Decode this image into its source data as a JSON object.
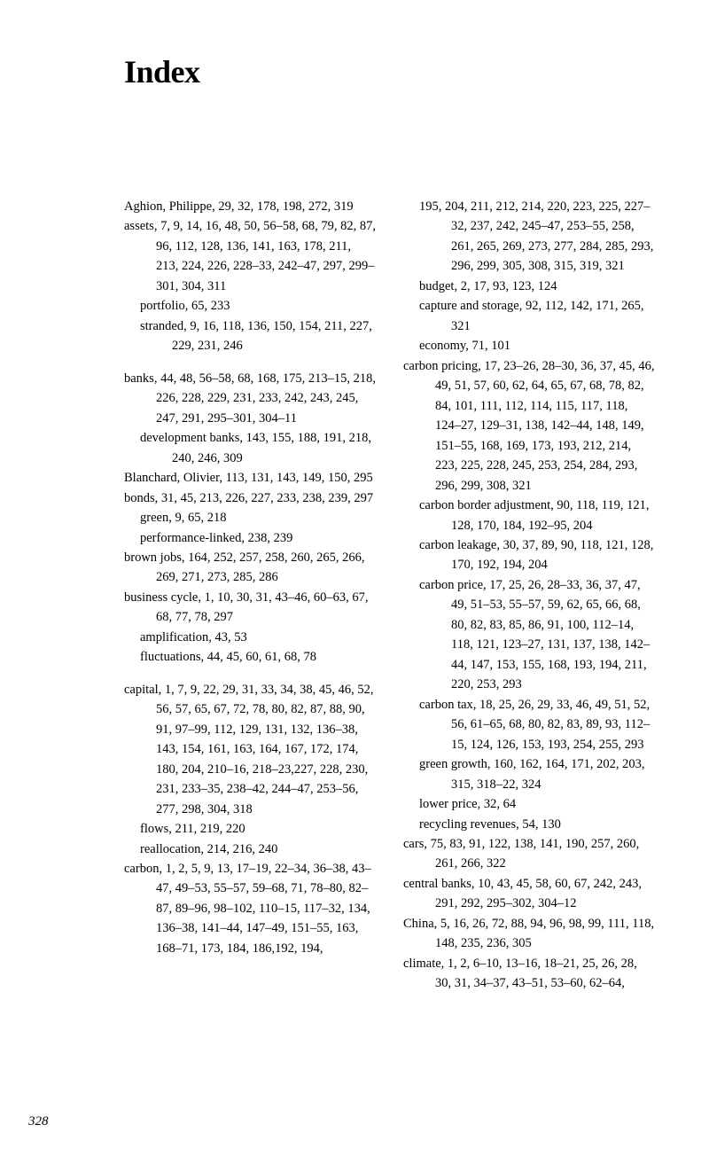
{
  "title": "Index",
  "page_number": "328",
  "left_column": [
    {
      "cls": "entry",
      "text": "Aghion, Philippe, 29, 32, 178, 198, 272, 319"
    },
    {
      "cls": "entry",
      "text": "assets, 7, 9, 14, 16, 48, 50, 56–58, 68, 79, 82, 87, 96, 112, 128, 136, 141, 163, 178, 211, 213, 224, 226, 228–33, 242–47, 297, 299–301, 304, 311"
    },
    {
      "cls": "sub",
      "text": "portfolio, 65, 233"
    },
    {
      "cls": "sub",
      "text": "stranded, 9, 16, 118, 136, 150, 154, 211, 227, 229, 231, 246"
    },
    {
      "cls": "group-space",
      "text": ""
    },
    {
      "cls": "entry",
      "text": "banks, 44, 48, 56–58, 68, 168, 175, 213–15, 218, 226, 228, 229, 231, 233, 242, 243, 245, 247, 291, 295–301, 304–11"
    },
    {
      "cls": "sub",
      "text": "development banks, 143, 155, 188, 191, 218, 240, 246, 309"
    },
    {
      "cls": "entry",
      "text": "Blanchard, Olivier, 113, 131, 143, 149, 150, 295"
    },
    {
      "cls": "entry",
      "text": "bonds, 31, 45, 213, 226, 227, 233, 238, 239, 297"
    },
    {
      "cls": "sub",
      "text": "green, 9, 65, 218"
    },
    {
      "cls": "sub",
      "text": "performance-linked, 238, 239"
    },
    {
      "cls": "entry",
      "text": "brown jobs, 164, 252, 257, 258, 260, 265, 266, 269, 271, 273, 285, 286"
    },
    {
      "cls": "entry",
      "text": "business cycle, 1, 10, 30, 31, 43–46, 60–63, 67, 68, 77, 78, 297"
    },
    {
      "cls": "sub",
      "text": "amplification, 43, 53"
    },
    {
      "cls": "sub",
      "text": "fluctuations, 44, 45, 60, 61, 68, 78"
    },
    {
      "cls": "group-space",
      "text": ""
    },
    {
      "cls": "entry",
      "text": "capital, 1, 7, 9, 22, 29, 31, 33, 34, 38, 45, 46, 52, 56, 57, 65, 67, 72, 78, 80, 82, 87, 88, 90, 91, 97–99, 112, 129, 131, 132, 136–38, 143, 154, 161, 163, 164, 167, 172, 174, 180, 204, 210–16, 218–23,227, 228, 230, 231, 233–35, 238–42, 244–47, 253–56, 277, 298, 304, 318"
    },
    {
      "cls": "sub",
      "text": "flows, 211, 219, 220"
    },
    {
      "cls": "sub",
      "text": "reallocation, 214, 216, 240"
    },
    {
      "cls": "entry",
      "text": "carbon, 1, 2, 5, 9, 13, 17–19, 22–34, 36–38, 43–47, 49–53, 55–57, 59–68, 71, 78–80, 82–87, 89–96, 98–102, 110–15, 117–32, 134, 136–38, 141–44, 147–49, 151–55, 163, 168–71, 173, 184, 186,192, 194,"
    }
  ],
  "right_column": [
    {
      "cls": "sub",
      "text": "195, 204, 211, 212, 214, 220, 223, 225, 227–32, 237, 242, 245–47, 253–55, 258, 261, 265, 269, 273, 277, 284, 285, 293, 296, 299, 305, 308, 315, 319, 321"
    },
    {
      "cls": "sub",
      "text": "budget, 2, 17, 93, 123, 124"
    },
    {
      "cls": "sub",
      "text": "capture and storage, 92, 112, 142, 171, 265, 321"
    },
    {
      "cls": "sub",
      "text": "economy, 71, 101"
    },
    {
      "cls": "entry",
      "text": "carbon pricing, 17, 23–26, 28–30, 36, 37, 45, 46, 49, 51, 57, 60, 62, 64, 65, 67, 68, 78, 82, 84, 101, 111, 112, 114, 115, 117, 118, 124–27, 129–31, 138, 142–44, 148, 149, 151–55, 168, 169, 173, 193, 212, 214, 223, 225, 228, 245, 253, 254, 284, 293, 296, 299, 308, 321"
    },
    {
      "cls": "sub",
      "text": "carbon border adjustment, 90, 118, 119, 121, 128, 170, 184, 192–95, 204"
    },
    {
      "cls": "sub",
      "text": "carbon leakage, 30, 37, 89, 90, 118, 121, 128, 170, 192, 194, 204"
    },
    {
      "cls": "sub",
      "text": "carbon price, 17, 25, 26, 28–33, 36, 37, 47, 49, 51–53, 55–57, 59, 62, 65, 66, 68, 80, 82, 83, 85, 86, 91, 100, 112–14, 118, 121, 123–27, 131, 137, 138, 142–44, 147, 153, 155, 168, 193, 194, 211, 220, 253, 293"
    },
    {
      "cls": "sub",
      "text": "carbon tax, 18, 25, 26, 29, 33, 46, 49, 51, 52, 56, 61–65, 68, 80, 82, 83, 89, 93, 112–15, 124, 126, 153, 193, 254, 255, 293"
    },
    {
      "cls": "sub",
      "text": "green growth, 160, 162, 164, 171, 202, 203, 315, 318–22, 324"
    },
    {
      "cls": "sub",
      "text": "lower price, 32, 64"
    },
    {
      "cls": "sub",
      "text": "recycling revenues, 54, 130"
    },
    {
      "cls": "entry",
      "text": "cars, 75, 83, 91, 122, 138, 141, 190, 257, 260, 261, 266, 322"
    },
    {
      "cls": "entry",
      "text": "central banks, 10, 43, 45, 58, 60, 67, 242, 243, 291, 292, 295–302, 304–12"
    },
    {
      "cls": "entry",
      "text": "China, 5, 16, 26, 72, 88, 94, 96, 98, 99, 111, 118, 148, 235, 236, 305"
    },
    {
      "cls": "entry",
      "text": "climate, 1, 2, 6–10, 13–16, 18–21, 25, 26, 28, 30, 31, 34–37, 43–51, 53–60, 62–64,"
    }
  ]
}
